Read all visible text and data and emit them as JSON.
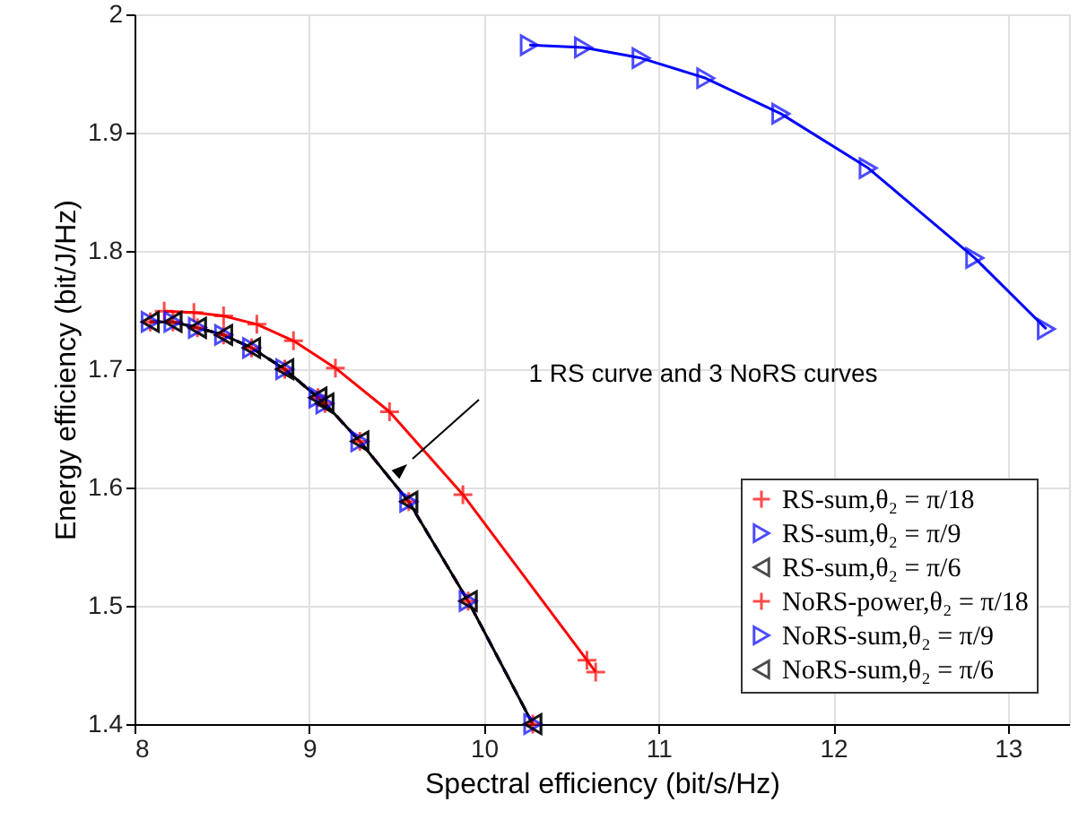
{
  "chart_data": {
    "type": "line",
    "xlabel": "Spectral efficiency (bit/s/Hz)",
    "ylabel": "Energy efficiency (bit/J/Hz)",
    "xlim": [
      8,
      13.35
    ],
    "ylim": [
      1.4,
      2
    ],
    "xticks": [
      8,
      9,
      10,
      11,
      12,
      13
    ],
    "yticks": [
      1.4,
      1.5,
      1.6,
      1.7,
      1.8,
      1.9,
      2
    ],
    "grid": true,
    "legend": "bottom right",
    "annotations": [
      "1 RS curve and 3 NoRS curves"
    ],
    "series": [
      {
        "name": "RS-sum,θ₂ = π/18",
        "color": "#ff0000",
        "marker": "cross",
        "line_style": "solid",
        "x": [
          8.17,
          8.34,
          8.51,
          8.7,
          8.91,
          9.15,
          9.46,
          9.88,
          10.59,
          10.64
        ],
        "values": [
          1.749,
          1.748,
          1.745,
          1.738,
          1.724,
          1.701,
          1.664,
          1.594,
          1.454,
          1.444
        ]
      },
      {
        "name": "RS-sum,θ₂ = π/9",
        "color": "#0000ff",
        "marker": "triangle-right",
        "line_style": "solid",
        "x": [
          10.26,
          10.57,
          10.9,
          11.27,
          11.7,
          12.2,
          12.81,
          13.22
        ],
        "values": [
          1.974,
          1.972,
          1.963,
          1.946,
          1.916,
          1.87,
          1.794,
          1.734
        ]
      },
      {
        "name": "RS-sum,θ₂ = π/6",
        "color": "#000000",
        "marker": "triangle-left",
        "line_style": "solid",
        "x": [
          8.09,
          8.22,
          8.36,
          8.51,
          8.67,
          8.86,
          9.05,
          9.09,
          9.29,
          9.57,
          9.91,
          10.28
        ],
        "values": [
          1.74,
          1.74,
          1.735,
          1.729,
          1.718,
          1.7,
          1.676,
          1.671,
          1.639,
          1.588,
          1.504,
          1.4
        ]
      },
      {
        "name": "NoRS-power,θ₂ = π/18",
        "color": "#ff0000",
        "marker": "cross",
        "line_style": "dashed",
        "x": [
          8.09,
          8.22,
          8.36,
          8.51,
          8.67,
          8.86,
          9.05,
          9.09,
          9.29,
          9.57,
          9.91,
          10.28
        ],
        "values": [
          1.74,
          1.74,
          1.735,
          1.729,
          1.718,
          1.7,
          1.676,
          1.671,
          1.639,
          1.588,
          1.504,
          1.4
        ]
      },
      {
        "name": "NoRS-sum,θ₂ = π/9",
        "color": "#0000ff",
        "marker": "triangle-right",
        "line_style": "dashed",
        "x": [
          8.09,
          8.22,
          8.36,
          8.51,
          8.67,
          8.86,
          9.05,
          9.09,
          9.29,
          9.57,
          9.91,
          10.28
        ],
        "values": [
          1.74,
          1.74,
          1.735,
          1.729,
          1.718,
          1.7,
          1.676,
          1.671,
          1.639,
          1.588,
          1.504,
          1.4
        ]
      },
      {
        "name": "NoRS-sum,θ₂ = π/6",
        "color": "#000000",
        "marker": "triangle-left",
        "line_style": "dashed",
        "x": [
          8.09,
          8.22,
          8.36,
          8.51,
          8.67,
          8.86,
          9.05,
          9.09,
          9.29,
          9.57,
          9.91,
          10.28
        ],
        "values": [
          1.74,
          1.74,
          1.735,
          1.729,
          1.718,
          1.7,
          1.676,
          1.671,
          1.639,
          1.588,
          1.504,
          1.4
        ]
      }
    ]
  }
}
